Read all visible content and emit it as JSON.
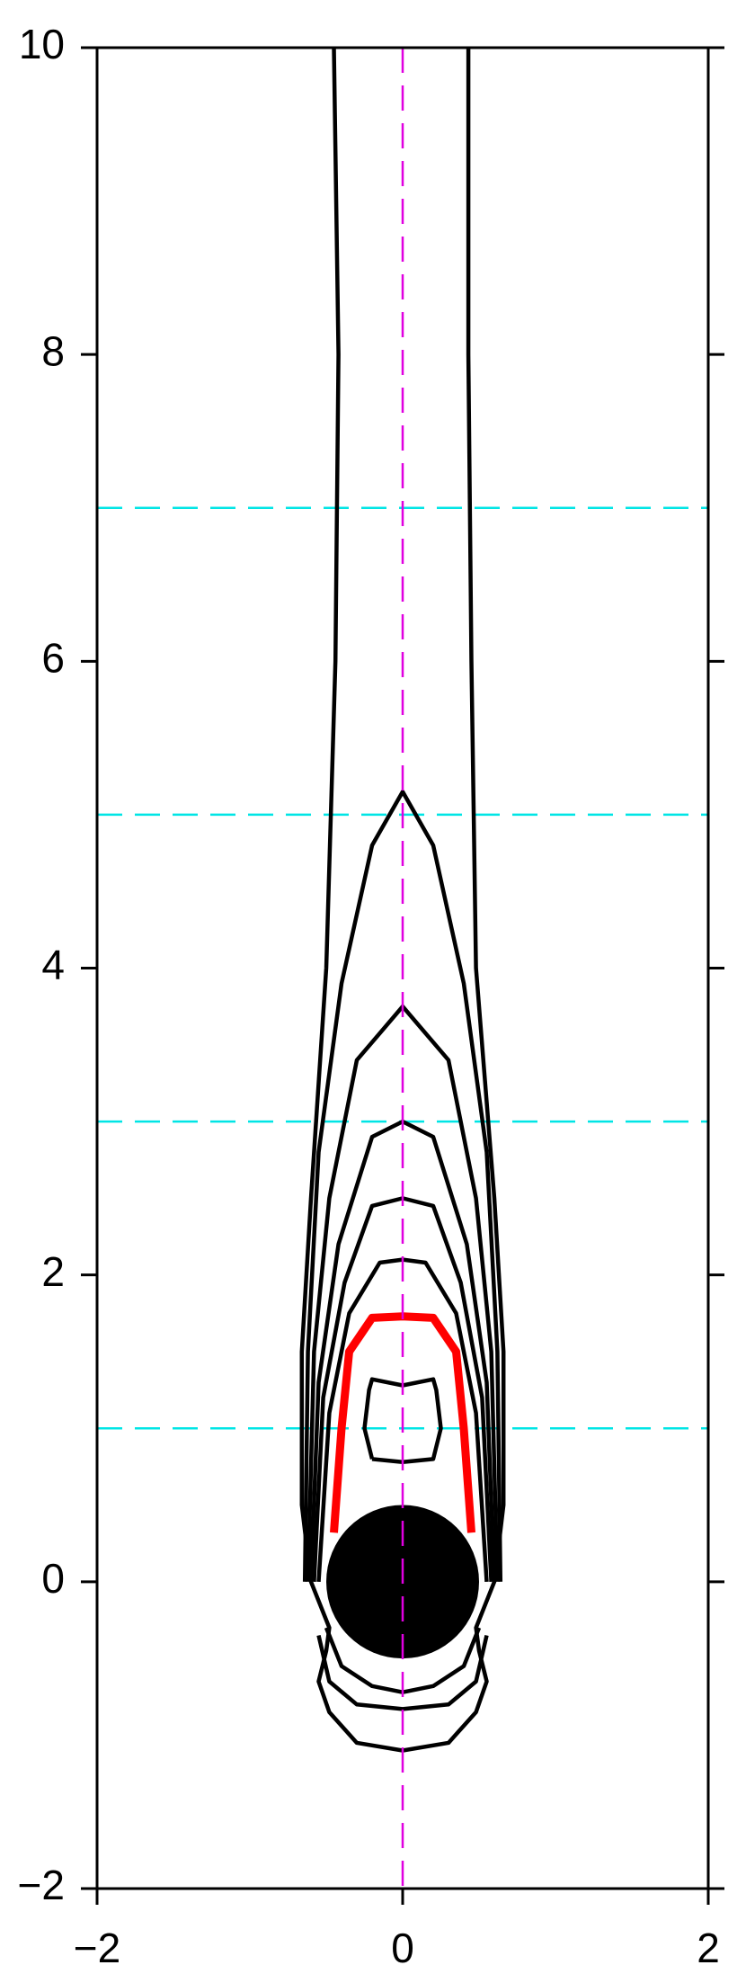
{
  "chart_data": {
    "type": "line",
    "xlim": [
      -2,
      2
    ],
    "ylim": [
      -2,
      10
    ],
    "xticks": [
      {
        "value": -2,
        "label": "−2"
      },
      0,
      2
    ],
    "yticks": [
      {
        "value": -2,
        "label": "−2"
      },
      0,
      2,
      4,
      6,
      8,
      10
    ],
    "hlines": [
      1,
      3,
      5,
      7
    ],
    "hline_color": "#00e5e5",
    "vline": 0,
    "vline_color": "#e000e0",
    "circle": {
      "x": 0,
      "y": 0,
      "r": 0.5,
      "color": "#000000"
    },
    "series": [
      {
        "color": "#000000",
        "x": [
          -0.45,
          -0.42,
          -0.44,
          -0.5,
          -0.6,
          -0.66,
          -0.66,
          -0.6,
          -0.48,
          -0.5,
          -0.55,
          -0.48,
          -0.3,
          0,
          0.3,
          0.48,
          0.55,
          0.5,
          0.48,
          0.6,
          0.66,
          0.66,
          0.6,
          0.48,
          0.45,
          0.43,
          0.43
        ],
        "y": [
          10,
          8,
          6,
          4,
          2.5,
          1.5,
          0.5,
          0,
          -0.3,
          -0.45,
          -0.65,
          -0.85,
          -1.05,
          -1.1,
          -1.05,
          -0.85,
          -0.65,
          -0.45,
          -0.3,
          0,
          0.5,
          1.5,
          2.5,
          4,
          6,
          8,
          10
        ]
      },
      {
        "color": "#000000",
        "x": [
          -0.64,
          -0.62,
          -0.55,
          -0.4,
          -0.2,
          0,
          0.2,
          0.4,
          0.55,
          0.62,
          0.64
        ],
        "y": [
          0,
          1.5,
          2.8,
          3.9,
          4.8,
          5.15,
          4.8,
          3.9,
          2.8,
          1.5,
          0
        ]
      },
      {
        "color": "#000000",
        "x": [
          -0.62,
          -0.58,
          -0.48,
          -0.3,
          0,
          0.3,
          0.48,
          0.58,
          0.62
        ],
        "y": [
          0,
          1.5,
          2.5,
          3.4,
          3.75,
          3.4,
          2.5,
          1.5,
          0
        ]
      },
      {
        "color": "#000000",
        "x": [
          -0.6,
          -0.55,
          -0.42,
          -0.2,
          0,
          0.2,
          0.42,
          0.55,
          0.6
        ],
        "y": [
          0,
          1.3,
          2.2,
          2.9,
          3.0,
          2.9,
          2.2,
          1.3,
          0
        ]
      },
      {
        "color": "#000000",
        "x": [
          -0.58,
          -0.52,
          -0.38,
          -0.2,
          0,
          0.2,
          0.38,
          0.52,
          0.58
        ],
        "y": [
          0,
          1.2,
          1.95,
          2.45,
          2.5,
          2.45,
          1.95,
          1.2,
          0
        ]
      },
      {
        "color": "#000000",
        "x": [
          -0.55,
          -0.48,
          -0.35,
          -0.15,
          0,
          0.15,
          0.35,
          0.48,
          0.55
        ],
        "y": [
          0,
          1.1,
          1.75,
          2.08,
          2.1,
          2.08,
          1.75,
          1.1,
          0
        ]
      },
      {
        "color": "#ff0000",
        "x": [
          -0.45,
          -0.4,
          -0.35,
          -0.2,
          0,
          0.2,
          0.35,
          0.4,
          0.45
        ],
        "y": [
          0.32,
          1.0,
          1.5,
          1.72,
          1.73,
          1.72,
          1.5,
          1.0,
          0.32
        ]
      },
      {
        "color": "#000000",
        "x": [
          -0.2,
          -0.25,
          -0.22,
          -0.2,
          0,
          0.2,
          0.22,
          0.25,
          0.2,
          0,
          -0.2
        ],
        "y": [
          0.8,
          1.0,
          1.25,
          1.32,
          1.28,
          1.32,
          1.25,
          1.0,
          0.8,
          0.78,
          0.8
        ]
      },
      {
        "color": "#000000",
        "x": [
          -0.5,
          -0.4,
          -0.2,
          0,
          0.2,
          0.4,
          0.5
        ],
        "y": [
          -0.3,
          -0.55,
          -0.68,
          -0.72,
          -0.68,
          -0.55,
          -0.3
        ]
      },
      {
        "color": "#000000",
        "x": [
          -0.55,
          -0.48,
          -0.3,
          0,
          0.3,
          0.48,
          0.55
        ],
        "y": [
          -0.35,
          -0.65,
          -0.8,
          -0.83,
          -0.8,
          -0.65,
          -0.35
        ]
      }
    ]
  }
}
